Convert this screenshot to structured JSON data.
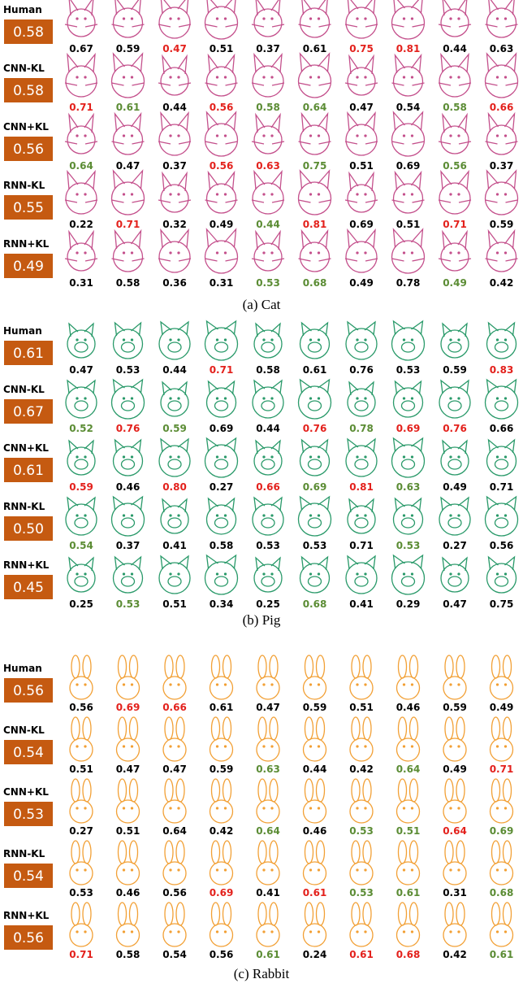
{
  "panels": [
    {
      "caption": "(a) Cat",
      "rows": [
        {
          "label": "Human",
          "score": "0.58",
          "values": [
            "0.67",
            "0.59",
            "0.47",
            "0.51",
            "0.37",
            "0.61",
            "0.75",
            "0.81",
            "0.44",
            "0.63"
          ],
          "colors": [
            "#000",
            "#000",
            "#e3211c",
            "#000",
            "#000",
            "#000",
            "#e3211c",
            "#e3211c",
            "#000",
            "#000"
          ]
        },
        {
          "label": "CNN-KL",
          "score": "0.58",
          "values": [
            "0.71",
            "0.61",
            "0.44",
            "0.56",
            "0.58",
            "0.64",
            "0.47",
            "0.54",
            "0.58",
            "0.66"
          ],
          "colors": [
            "#e3211c",
            "#5b8c34",
            "#000",
            "#e3211c",
            "#5b8c34",
            "#5b8c34",
            "#000",
            "#000",
            "#5b8c34",
            "#e3211c"
          ]
        },
        {
          "label": "CNN+KL",
          "score": "0.56",
          "values": [
            "0.64",
            "0.47",
            "0.37",
            "0.56",
            "0.63",
            "0.75",
            "0.51",
            "0.69",
            "0.56",
            "0.37"
          ],
          "colors": [
            "#5b8c34",
            "#000",
            "#000",
            "#e3211c",
            "#e3211c",
            "#5b8c34",
            "#000",
            "#000",
            "#5b8c34",
            "#000"
          ]
        },
        {
          "label": "RNN-KL",
          "score": "0.55",
          "values": [
            "0.22",
            "0.71",
            "0.32",
            "0.49",
            "0.44",
            "0.81",
            "0.69",
            "0.51",
            "0.71",
            "0.59"
          ],
          "colors": [
            "#000",
            "#e3211c",
            "#000",
            "#000",
            "#5b8c34",
            "#e3211c",
            "#000",
            "#000",
            "#e3211c",
            "#000"
          ]
        },
        {
          "label": "RNN+KL",
          "score": "0.49",
          "values": [
            "0.31",
            "0.58",
            "0.36",
            "0.31",
            "0.53",
            "0.68",
            "0.49",
            "0.78",
            "0.49",
            "0.42"
          ],
          "colors": [
            "#000",
            "#000",
            "#000",
            "#000",
            "#5b8c34",
            "#5b8c34",
            "#000",
            "#000",
            "#5b8c34",
            "#000"
          ]
        }
      ]
    },
    {
      "caption": "(b) Pig",
      "rows": [
        {
          "label": "Human",
          "score": "0.61",
          "values": [
            "0.47",
            "0.53",
            "0.44",
            "0.71",
            "0.58",
            "0.61",
            "0.76",
            "0.53",
            "0.59",
            "0.83"
          ],
          "colors": [
            "#000",
            "#000",
            "#000",
            "#e3211c",
            "#000",
            "#000",
            "#000",
            "#000",
            "#000",
            "#e3211c"
          ]
        },
        {
          "label": "CNN-KL",
          "score": "0.67",
          "values": [
            "0.52",
            "0.76",
            "0.59",
            "0.69",
            "0.44",
            "0.76",
            "0.78",
            "0.69",
            "0.76",
            "0.66"
          ],
          "colors": [
            "#5b8c34",
            "#e3211c",
            "#5b8c34",
            "#000",
            "#000",
            "#e3211c",
            "#5b8c34",
            "#e3211c",
            "#e3211c",
            "#000"
          ]
        },
        {
          "label": "CNN+KL",
          "score": "0.61",
          "values": [
            "0.59",
            "0.46",
            "0.80",
            "0.27",
            "0.66",
            "0.69",
            "0.81",
            "0.63",
            "0.49",
            "0.71"
          ],
          "colors": [
            "#e3211c",
            "#000",
            "#e3211c",
            "#000",
            "#e3211c",
            "#5b8c34",
            "#e3211c",
            "#5b8c34",
            "#000",
            "#000"
          ]
        },
        {
          "label": "RNN-KL",
          "score": "0.50",
          "values": [
            "0.54",
            "0.37",
            "0.41",
            "0.58",
            "0.53",
            "0.53",
            "0.71",
            "0.53",
            "0.27",
            "0.56"
          ],
          "colors": [
            "#5b8c34",
            "#000",
            "#000",
            "#000",
            "#000",
            "#000",
            "#000",
            "#5b8c34",
            "#000",
            "#000"
          ]
        },
        {
          "label": "RNN+KL",
          "score": "0.45",
          "values": [
            "0.25",
            "0.53",
            "0.51",
            "0.34",
            "0.25",
            "0.68",
            "0.41",
            "0.29",
            "0.47",
            "0.75"
          ],
          "colors": [
            "#000",
            "#5b8c34",
            "#000",
            "#000",
            "#000",
            "#5b8c34",
            "#000",
            "#000",
            "#000",
            "#000"
          ]
        }
      ]
    },
    {
      "caption": "(c) Rabbit",
      "rows": [
        {
          "label": "Human",
          "score": "0.56",
          "values": [
            "0.56",
            "0.69",
            "0.66",
            "0.61",
            "0.47",
            "0.59",
            "0.51",
            "0.46",
            "0.59",
            "0.49"
          ],
          "colors": [
            "#000",
            "#e3211c",
            "#e3211c",
            "#000",
            "#000",
            "#000",
            "#000",
            "#000",
            "#000",
            "#000"
          ]
        },
        {
          "label": "CNN-KL",
          "score": "0.54",
          "values": [
            "0.51",
            "0.47",
            "0.47",
            "0.59",
            "0.63",
            "0.44",
            "0.42",
            "0.64",
            "0.49",
            "0.71"
          ],
          "colors": [
            "#000",
            "#000",
            "#000",
            "#000",
            "#5b8c34",
            "#000",
            "#000",
            "#5b8c34",
            "#000",
            "#e3211c"
          ]
        },
        {
          "label": "CNN+KL",
          "score": "0.53",
          "values": [
            "0.27",
            "0.51",
            "0.64",
            "0.42",
            "0.64",
            "0.46",
            "0.53",
            "0.51",
            "0.64",
            "0.69"
          ],
          "colors": [
            "#000",
            "#000",
            "#000",
            "#000",
            "#5b8c34",
            "#000",
            "#5b8c34",
            "#5b8c34",
            "#e3211c",
            "#5b8c34"
          ]
        },
        {
          "label": "RNN-KL",
          "score": "0.54",
          "values": [
            "0.53",
            "0.46",
            "0.56",
            "0.69",
            "0.41",
            "0.61",
            "0.53",
            "0.61",
            "0.31",
            "0.68"
          ],
          "colors": [
            "#000",
            "#000",
            "#000",
            "#e3211c",
            "#000",
            "#e3211c",
            "#5b8c34",
            "#5b8c34",
            "#000",
            "#5b8c34"
          ]
        },
        {
          "label": "RNN+KL",
          "score": "0.56",
          "values": [
            "0.71",
            "0.58",
            "0.54",
            "0.56",
            "0.61",
            "0.24",
            "0.61",
            "0.68",
            "0.42",
            "0.61"
          ],
          "colors": [
            "#e3211c",
            "#000",
            "#000",
            "#000",
            "#5b8c34",
            "#000",
            "#e3211c",
            "#e3211c",
            "#000",
            "#5b8c34"
          ]
        }
      ]
    }
  ]
}
